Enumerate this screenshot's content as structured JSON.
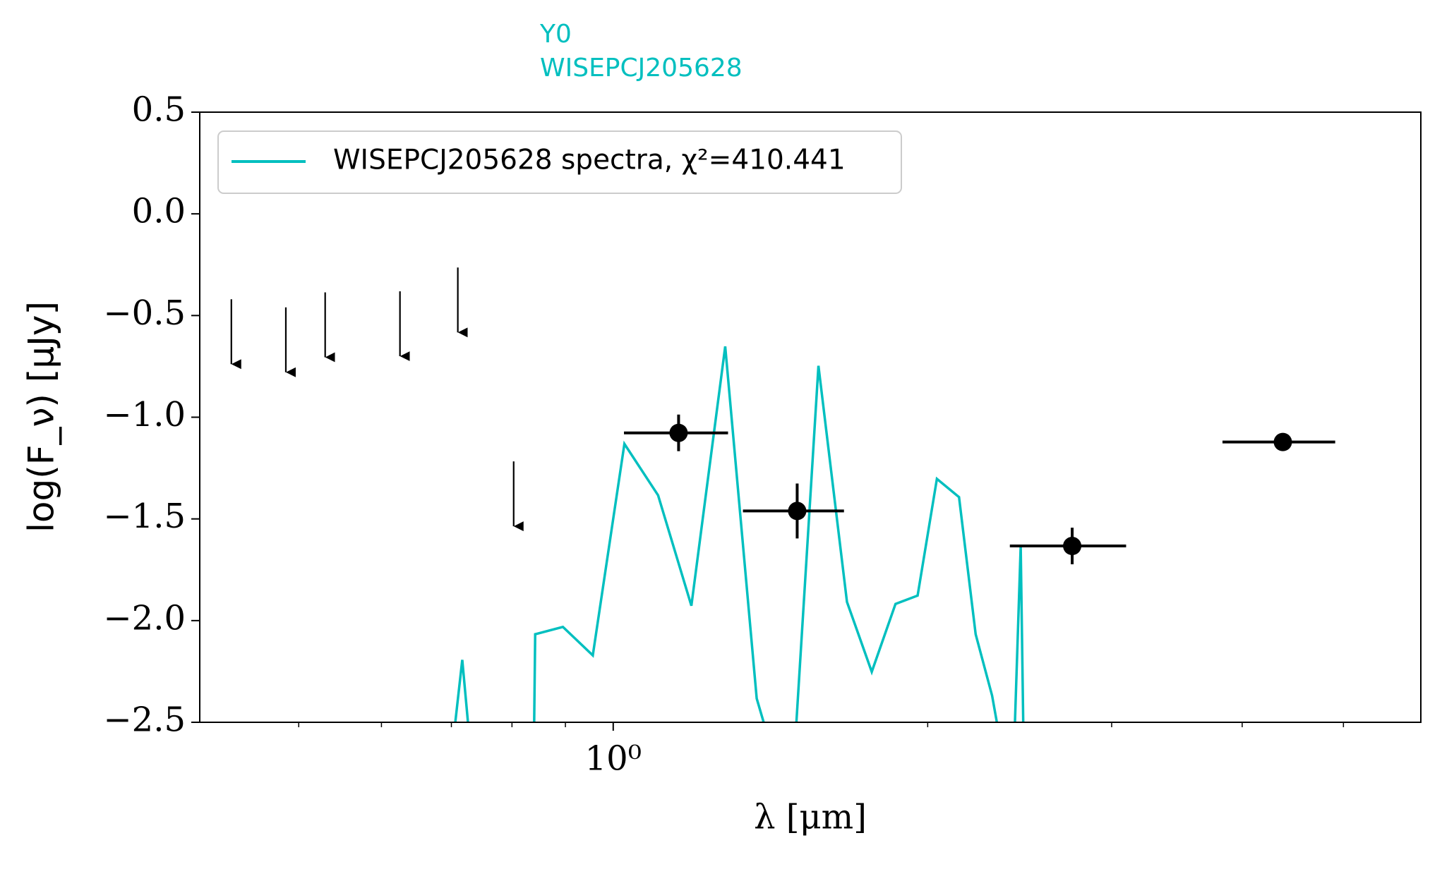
{
  "chart_data": {
    "type": "sed",
    "title_lines": [
      "Y0",
      "WISEPCJ205628"
    ],
    "title_color": "#00bfbf",
    "xlabel": "λ [μm]",
    "ylabel": "log(F_ν) [μJy]",
    "xscale": "log",
    "xlim": [
      0.402,
      5.93
    ],
    "ylim": [
      -2.5,
      0.5
    ],
    "xticks": [
      {
        "value": 1,
        "label": "10⁰"
      }
    ],
    "xminor_ticks": [
      0.5,
      0.6,
      0.7,
      0.8,
      0.9,
      2,
      3,
      4,
      5
    ],
    "yticks": [
      {
        "value": -2.5,
        "label": "−2.5"
      },
      {
        "value": -2.0,
        "label": "−2.0"
      },
      {
        "value": -1.5,
        "label": "−1.5"
      },
      {
        "value": -1.0,
        "label": "−1.0"
      },
      {
        "value": -0.5,
        "label": "−0.5"
      },
      {
        "value": 0.0,
        "label": "0.0"
      },
      0.5
    ],
    "legend_loc": "upper left",
    "series": [
      {
        "name": "WISEPCJ205628 spectra, χ²=410.441",
        "color": "#00bfbf",
        "x": [
          0.699,
          0.717,
          0.732,
          0.838,
          0.842,
          0.895,
          0.956,
          1.025,
          1.104,
          1.188,
          1.28,
          1.372,
          1.449,
          1.485,
          1.572,
          1.674,
          1.768,
          1.863,
          1.956,
          2.041,
          2.143,
          2.223,
          2.305,
          2.348,
          2.41,
          2.455,
          2.475
        ],
        "values": [
          -2.7,
          -2.193,
          -2.7,
          -3.0,
          -2.067,
          -2.031,
          -2.171,
          -1.131,
          -1.384,
          -1.927,
          -0.652,
          -2.383,
          -2.8,
          -2.8,
          -0.747,
          -1.908,
          -2.252,
          -1.918,
          -1.877,
          -1.303,
          -1.393,
          -2.067,
          -2.369,
          -2.6,
          -2.9,
          -1.633,
          -2.9
        ]
      }
    ],
    "upper_limits": {
      "color": "#000000",
      "x": [
        0.431,
        0.486,
        0.53,
        0.625,
        0.71,
        0.803
      ],
      "values": [
        -0.42,
        -0.46,
        -0.386,
        -0.381,
        -0.264,
        -1.217
      ]
    },
    "detections": {
      "color": "#000000",
      "x": [
        1.155,
        1.5,
        2.75,
        4.375
      ],
      "xmin": [
        1.024,
        1.331,
        2.397,
        3.83
      ],
      "xmax": [
        1.288,
        1.663,
        3.097,
        4.91
      ],
      "values": [
        -1.077,
        -1.461,
        -1.633,
        -1.122
      ],
      "yerr": [
        0.09,
        0.135,
        0.09,
        null
      ]
    }
  }
}
